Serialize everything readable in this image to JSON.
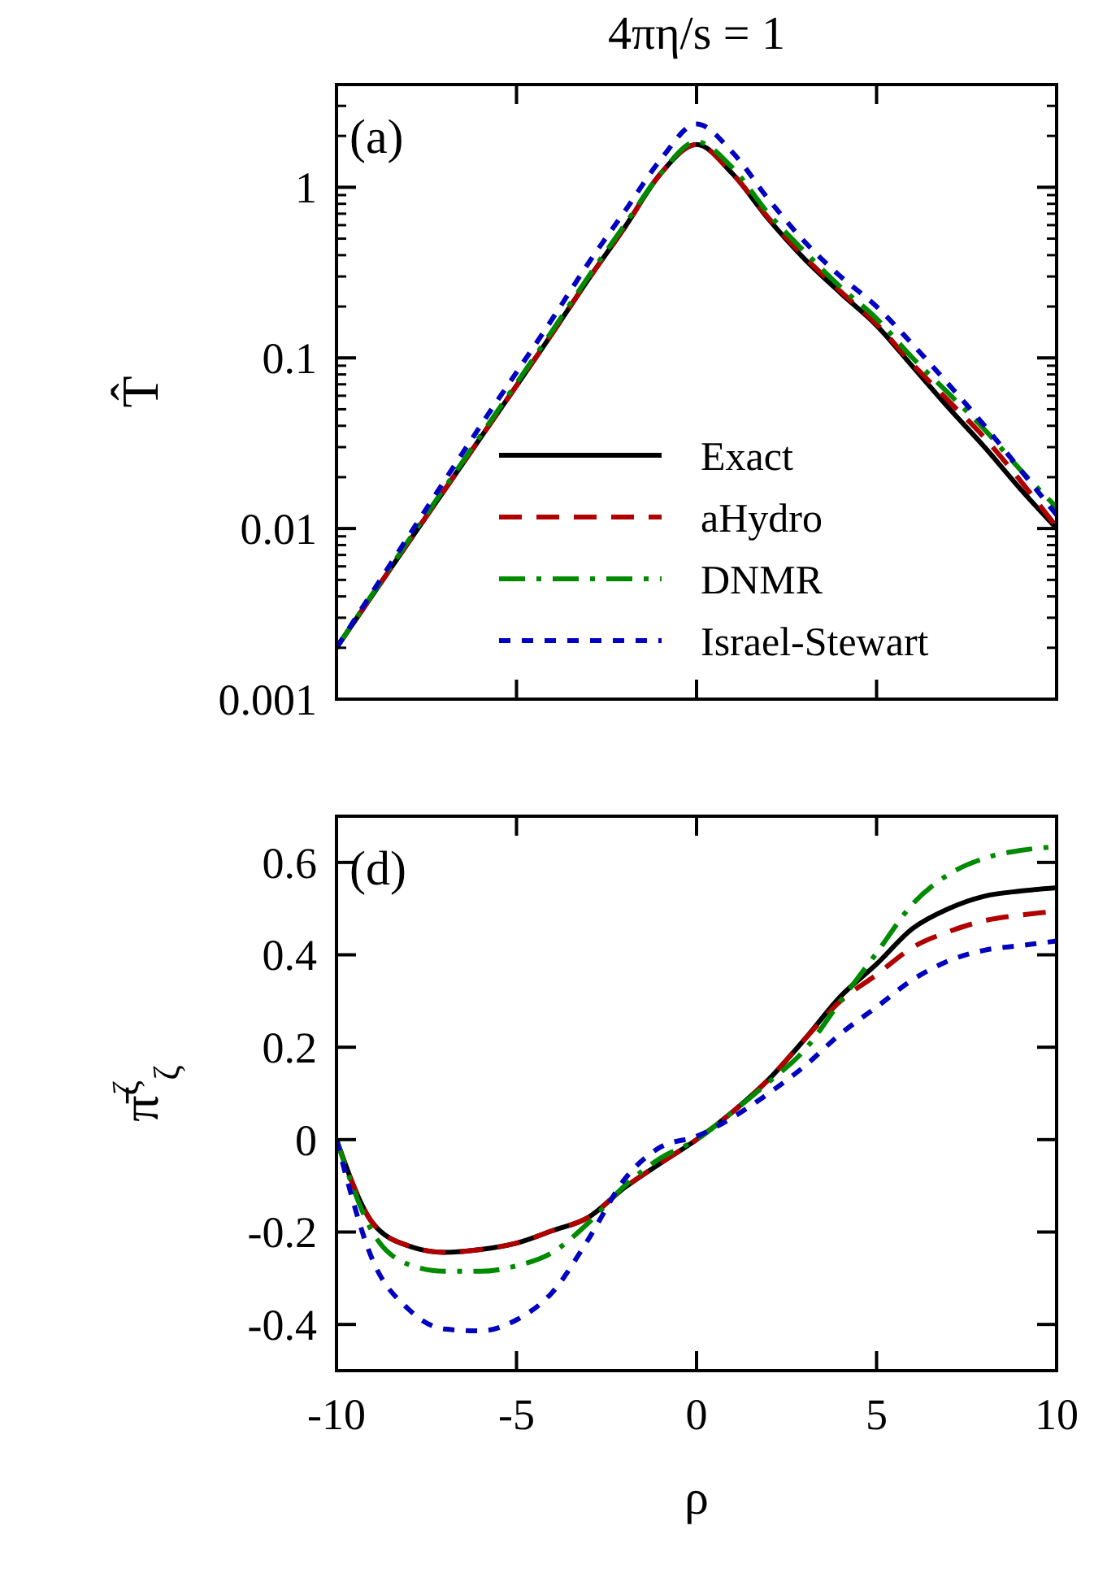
{
  "chart_data": [
    {
      "type": "line",
      "title": "4πη/s = 1",
      "ylabel": "T̂",
      "annotations": [
        "(a)"
      ],
      "log": "y",
      "xlim": [
        -10,
        10
      ],
      "xticks": [
        -10,
        -5,
        0,
        5,
        10
      ],
      "ylim": [
        0.001,
        4
      ],
      "yticks": [
        0.001,
        0.01,
        0.1,
        1
      ],
      "tick_labels": "y",
      "legend": "bottom right",
      "grid": false,
      "x": [
        -10,
        -8,
        -6,
        -4,
        -3,
        -2,
        -1,
        0,
        1,
        2,
        3,
        4,
        5,
        6,
        7,
        8,
        9,
        10
      ],
      "series": [
        {
          "name": "Exact",
          "color": "#000000",
          "line_style": "solid",
          "values": [
            0.002,
            0.0083,
            0.034,
            0.14,
            0.29,
            0.58,
            1.2,
            1.78,
            1.2,
            0.65,
            0.38,
            0.24,
            0.155,
            0.089,
            0.051,
            0.03,
            0.017,
            0.01
          ]
        },
        {
          "name": "aHydro",
          "color": "#b00000",
          "line_style": "dashed",
          "values": [
            0.002,
            0.0083,
            0.034,
            0.14,
            0.29,
            0.58,
            1.2,
            1.78,
            1.2,
            0.66,
            0.39,
            0.245,
            0.158,
            0.092,
            0.056,
            0.034,
            0.019,
            0.0102
          ]
        },
        {
          "name": "DNMR",
          "color": "#008a00",
          "line_style": "dashdot",
          "values": [
            0.002,
            0.0085,
            0.035,
            0.145,
            0.3,
            0.6,
            1.2,
            1.85,
            1.3,
            0.7,
            0.42,
            0.26,
            0.17,
            0.1,
            0.062,
            0.038,
            0.022,
            0.0133
          ]
        },
        {
          "name": "Israel-Stewart",
          "color": "#0000c0",
          "line_style": "dotted",
          "values": [
            0.002,
            0.009,
            0.04,
            0.17,
            0.36,
            0.72,
            1.45,
            2.35,
            1.6,
            0.85,
            0.48,
            0.3,
            0.2,
            0.12,
            0.07,
            0.04,
            0.022,
            0.012
          ]
        }
      ]
    },
    {
      "type": "line",
      "xlabel": "ρ",
      "ylabel": "π̄$^{ζ}$$_{ζ}$",
      "annotations": [
        "(d)"
      ],
      "xlim": [
        -10,
        10
      ],
      "xticks": [
        -10,
        -5,
        0,
        5,
        10
      ],
      "ylim": [
        -0.5,
        0.7
      ],
      "yticks": [
        -0.4,
        -0.2,
        0,
        0.2,
        0.4,
        0.6
      ],
      "grid": false,
      "x": [
        -10,
        -9,
        -8,
        -7,
        -6,
        -5,
        -4,
        -3,
        -2,
        -1,
        0,
        1,
        2,
        3,
        4,
        5,
        6,
        7,
        8,
        9,
        10
      ],
      "series": [
        {
          "color": "#000000",
          "line_style": "solid",
          "values": [
            0,
            -0.18,
            -0.23,
            -0.244,
            -0.238,
            -0.224,
            -0.197,
            -0.168,
            -0.104,
            -0.051,
            0,
            0.06,
            0.13,
            0.217,
            0.31,
            0.38,
            0.457,
            0.5,
            0.527,
            0.538,
            0.545
          ]
        },
        {
          "color": "#b00000",
          "line_style": "dashed",
          "values": [
            0,
            -0.18,
            -0.23,
            -0.244,
            -0.238,
            -0.224,
            -0.197,
            -0.168,
            -0.104,
            -0.051,
            0,
            0.06,
            0.13,
            0.217,
            0.3,
            0.357,
            0.416,
            0.45,
            0.474,
            0.486,
            0.494
          ]
        },
        {
          "color": "#008a00",
          "line_style": "dashdot",
          "values": [
            0,
            -0.2,
            -0.27,
            -0.285,
            -0.285,
            -0.273,
            -0.244,
            -0.18,
            -0.1,
            -0.04,
            0,
            0.06,
            0.124,
            0.194,
            0.3,
            0.404,
            0.51,
            0.574,
            0.609,
            0.626,
            0.634
          ]
        },
        {
          "color": "#0000c0",
          "line_style": "dotted",
          "values": [
            0,
            -0.26,
            -0.367,
            -0.41,
            -0.414,
            -0.39,
            -0.33,
            -0.215,
            -0.086,
            -0.016,
            0.007,
            0.048,
            0.1,
            0.159,
            0.229,
            0.287,
            0.346,
            0.387,
            0.41,
            0.42,
            0.43
          ]
        }
      ]
    }
  ]
}
